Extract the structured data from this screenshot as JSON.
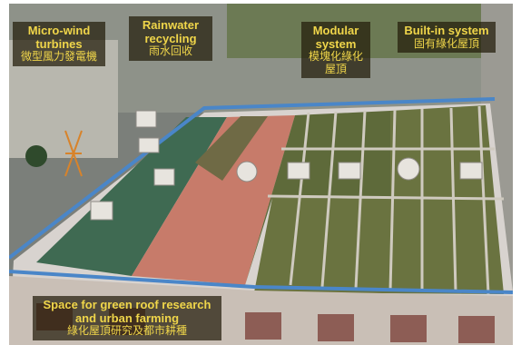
{
  "labels": {
    "micro_wind": {
      "en": "Micro-wind turbines",
      "zh": "微型風力發電機"
    },
    "rainwater": {
      "en": "Rainwater recycling",
      "zh": "雨水回收"
    },
    "modular": {
      "en": "Modular system",
      "zh": "模塊化綠化屋頂"
    },
    "built_in": {
      "en": "Built-in system",
      "zh": "固有綠化屋頂"
    },
    "space": {
      "en": "Space for green roof research and urban farming",
      "zh": "綠化屋頂研究及都市耕種"
    }
  },
  "colors": {
    "label_bg": "#231c0a",
    "label_text": "#f0d64a",
    "green_roof": "#5e6a3a",
    "red_paving": "#c77b6a",
    "green_floor": "#3f6a52",
    "railing": "#4a86c8"
  }
}
